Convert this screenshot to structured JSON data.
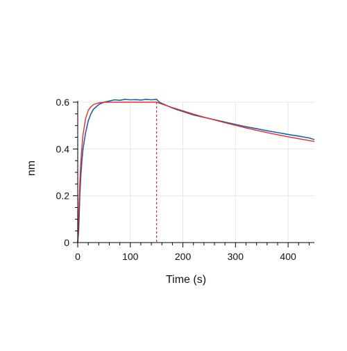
{
  "chart_data": {
    "type": "line",
    "title": "",
    "xlabel": "Time (s)",
    "ylabel": "nm",
    "xlim": [
      0,
      450
    ],
    "ylim": [
      0,
      0.6
    ],
    "x_ticks": [
      0,
      100,
      200,
      300,
      400
    ],
    "x_tick_labels": [
      "0",
      "100",
      "200",
      "300",
      "400"
    ],
    "y_ticks": [
      0,
      0.2,
      0.4,
      0.6
    ],
    "y_tick_labels": [
      "0",
      "0.2",
      "0.4",
      "0.6"
    ],
    "grid": true,
    "legend": "none",
    "vertical_markers": [
      {
        "x": 0,
        "color": "#d62728",
        "style": "dashed"
      },
      {
        "x": 150,
        "color": "#d62728",
        "style": "dashed"
      }
    ],
    "series": [
      {
        "color": "#1f5fa8",
        "x": [
          0,
          2,
          4,
          6,
          8,
          10,
          15,
          20,
          25,
          30,
          40,
          50,
          60,
          70,
          80,
          90,
          100,
          110,
          120,
          130,
          140,
          150,
          155,
          160,
          170,
          180,
          190,
          200,
          220,
          240,
          260,
          280,
          300,
          320,
          340,
          360,
          380,
          400,
          420,
          440,
          450
        ],
        "y": [
          0.0,
          0.06,
          0.2,
          0.29,
          0.35,
          0.4,
          0.47,
          0.52,
          0.55,
          0.57,
          0.59,
          0.6,
          0.605,
          0.61,
          0.608,
          0.612,
          0.61,
          0.611,
          0.609,
          0.612,
          0.61,
          0.612,
          0.6,
          0.595,
          0.585,
          0.575,
          0.567,
          0.56,
          0.545,
          0.535,
          0.525,
          0.515,
          0.505,
          0.495,
          0.487,
          0.478,
          0.47,
          0.462,
          0.455,
          0.447,
          0.44
        ]
      },
      {
        "color": "#e8292b",
        "x": [
          0,
          2,
          4,
          6,
          8,
          10,
          15,
          20,
          25,
          30,
          40,
          50,
          60,
          80,
          100,
          120,
          150,
          160,
          180,
          200,
          220,
          240,
          260,
          280,
          300,
          320,
          340,
          360,
          380,
          400,
          420,
          440,
          450
        ],
        "y": [
          0.0,
          0.14,
          0.26,
          0.35,
          0.41,
          0.46,
          0.53,
          0.565,
          0.58,
          0.59,
          0.597,
          0.6,
          0.6,
          0.6,
          0.6,
          0.6,
          0.6,
          0.592,
          0.577,
          0.563,
          0.549,
          0.536,
          0.524,
          0.512,
          0.501,
          0.49,
          0.48,
          0.47,
          0.461,
          0.452,
          0.444,
          0.436,
          0.432
        ]
      }
    ]
  }
}
